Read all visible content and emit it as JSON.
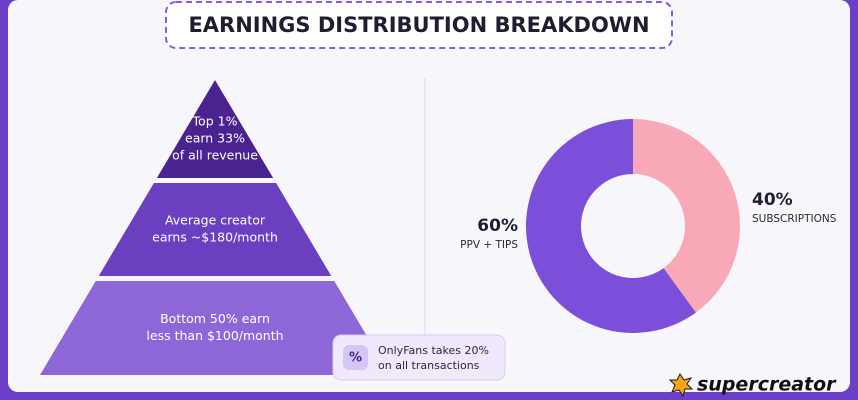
{
  "title": "EARNINGS DISTRIBUTION BREAKDOWN",
  "pyramid": {
    "tiers": [
      {
        "lines": [
          "Top 1%",
          "earn 33%",
          "of all revenue"
        ]
      },
      {
        "lines": [
          "Average creator",
          "earns ~$180/month"
        ]
      },
      {
        "lines": [
          "Bottom 50% earn",
          "less than $100/month"
        ]
      }
    ]
  },
  "note": {
    "icon": "%",
    "lines": [
      "OnlyFans takes 20%",
      "on all transactions"
    ]
  },
  "brand": "supercreator",
  "chart_data": {
    "type": "donut",
    "categories": [
      "SUBSCRIPTIONS",
      "PPV + TIPS"
    ],
    "values": [
      40,
      60
    ],
    "value_labels": [
      "40%",
      "60%"
    ],
    "colors": [
      "#f9a8b8",
      "#7b4fd9"
    ]
  }
}
